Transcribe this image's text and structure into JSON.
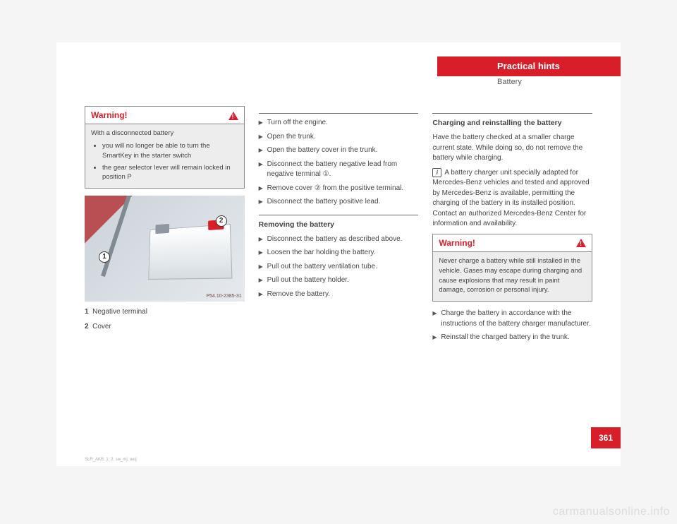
{
  "header": {
    "title": "Practical hints",
    "subtitle": "Battery"
  },
  "col1": {
    "warn": {
      "label": "Warning!",
      "intro": "With a disconnected battery",
      "b1": "you will no longer be able to turn the SmartKey in the starter switch",
      "b2": "the gear selector lever will remain locked in position P"
    },
    "fig": {
      "code": "P54.10-2385-31",
      "c1": "1",
      "c2": "2"
    },
    "leg1": "Negative terminal",
    "leg2": "Cover",
    "n1": "1",
    "n2": "2"
  },
  "col2": {
    "s1": "Turn off the engine.",
    "s2": "Open the trunk.",
    "s3": "Open the battery cover in the trunk.",
    "s4": "Disconnect the battery negative lead from negative terminal ①.",
    "s5": "Remove cover ② from the positive terminal.",
    "s6": "Disconnect the battery positive lead.",
    "sec1": "Removing the battery",
    "s7": "Disconnect the battery as described above.",
    "s8": "Loosen the bar holding the battery.",
    "s9": "Pull out the battery ventilation tube.",
    "s10": "Pull out the battery holder.",
    "s11": "Remove the battery."
  },
  "col3": {
    "sec2": "Charging and reinstalling the battery",
    "p1": "Have the battery checked at a smaller charge current state. While doing so, do not remove the battery while charging.",
    "note": "A battery charger unit specially adapted for Mercedes-Benz vehicles and tested and approved by Mercedes-Benz is available, permitting the charging of the battery in its installed position. Contact an authorized Mercedes-Benz Center for information and availability.",
    "warn": {
      "label": "Warning!",
      "body": "Never charge a battery while still installed in the vehicle. Gases may escape during charging and cause explosions that may result in paint damage, corrosion or personal injury."
    },
    "s12": "Charge the battery in accordance with the instructions of the battery charger manufacturer.",
    "s13": "Reinstall the charged battery in the trunk."
  },
  "page_number": "361",
  "watermark": "carmanualsonline.info",
  "footer_tiny": "SLR_AKB; 1; 2, sw_mj; aetj"
}
